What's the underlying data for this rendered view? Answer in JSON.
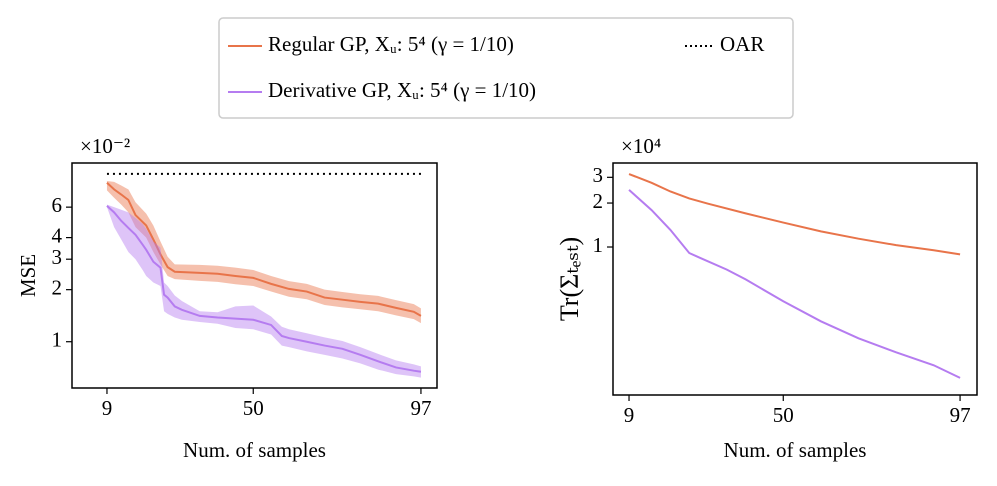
{
  "chart_data": [
    {
      "type": "line",
      "ylabel": "MSE",
      "xlabel": "Num. of samples",
      "y_multiplier": "×10⁻²",
      "yscale": "log",
      "xlim": [
        -0.8,
        101.5
      ],
      "ylim": [
        0.54,
        10.8
      ],
      "xticks": [
        9,
        50,
        97
      ],
      "yticks": [
        1,
        2,
        3,
        4,
        6
      ],
      "series": [
        {
          "name": "Regular GP, Xᵤ: 5⁴ (γ = 1/10)",
          "color": "#e8744a",
          "x": [
            9,
            11,
            13,
            15,
            17,
            20,
            22,
            24,
            26,
            28,
            35,
            40,
            45,
            50,
            55,
            60,
            65,
            70,
            75,
            80,
            85,
            90,
            95,
            97
          ],
          "values": [
            8.3,
            7.6,
            7.1,
            6.6,
            5.4,
            4.7,
            3.9,
            3.2,
            2.7,
            2.54,
            2.5,
            2.47,
            2.4,
            2.34,
            2.16,
            2.02,
            1.95,
            1.8,
            1.75,
            1.7,
            1.66,
            1.57,
            1.49,
            1.41
          ],
          "lower": [
            7.5,
            6.8,
            6.2,
            5.6,
            4.6,
            4.0,
            3.3,
            2.8,
            2.4,
            2.3,
            2.25,
            2.22,
            2.15,
            2.1,
            1.95,
            1.82,
            1.76,
            1.63,
            1.58,
            1.54,
            1.5,
            1.42,
            1.35,
            1.28
          ],
          "upper": [
            8.5,
            8.4,
            8.0,
            7.6,
            6.4,
            5.5,
            4.7,
            3.8,
            3.1,
            2.8,
            2.78,
            2.75,
            2.68,
            2.6,
            2.4,
            2.24,
            2.16,
            2.0,
            1.94,
            1.88,
            1.84,
            1.74,
            1.65,
            1.56
          ]
        },
        {
          "name": "Derivative GP, Xᵤ: 5⁴ (γ = 1/10)",
          "color": "#b57cf0",
          "x": [
            9,
            11,
            13,
            15,
            17,
            19,
            20,
            22,
            24,
            25,
            26,
            28,
            30,
            35,
            40,
            45,
            50,
            55,
            58,
            60,
            65,
            70,
            75,
            80,
            85,
            90,
            95,
            97
          ],
          "values": [
            6.1,
            5.6,
            5.0,
            4.55,
            4.15,
            3.64,
            3.4,
            2.9,
            2.68,
            1.87,
            1.8,
            1.6,
            1.53,
            1.41,
            1.38,
            1.36,
            1.34,
            1.25,
            1.08,
            1.05,
            1.0,
            0.95,
            0.91,
            0.84,
            0.77,
            0.71,
            0.68,
            0.67
          ],
          "lower": [
            6.0,
            4.6,
            3.9,
            3.3,
            3.0,
            2.6,
            2.4,
            2.2,
            2.1,
            1.5,
            1.45,
            1.38,
            1.34,
            1.3,
            1.27,
            1.2,
            1.18,
            1.1,
            0.95,
            0.93,
            0.88,
            0.84,
            0.8,
            0.75,
            0.69,
            0.65,
            0.63,
            0.62
          ],
          "upper": [
            6.2,
            6.0,
            5.8,
            5.6,
            5.2,
            4.8,
            4.5,
            3.8,
            3.5,
            2.2,
            2.1,
            1.85,
            1.72,
            1.5,
            1.48,
            1.6,
            1.62,
            1.4,
            1.22,
            1.18,
            1.12,
            1.06,
            1.01,
            0.93,
            0.85,
            0.78,
            0.74,
            0.72
          ]
        },
        {
          "name": "OAR",
          "color": "#000000",
          "dash": true,
          "x": [
            9,
            97
          ],
          "values": [
            9.35,
            9.35
          ]
        }
      ]
    },
    {
      "type": "line",
      "ylabel": "Tr(Σₜₑₛₜ)",
      "xlabel": "Num. of samples",
      "y_multiplier": "×10⁴",
      "yscale": "log",
      "xlim": [
        4.74,
        101.5
      ],
      "ylim": [
        0.097,
        3.76
      ],
      "xticks": [
        9,
        50,
        97
      ],
      "yticks": [
        1,
        2,
        3
      ],
      "series": [
        {
          "color": "#e8744a",
          "x": [
            9,
            15,
            20,
            25,
            30,
            40,
            50,
            60,
            70,
            80,
            90,
            97
          ],
          "values": [
            3.16,
            2.75,
            2.4,
            2.15,
            1.98,
            1.7,
            1.47,
            1.28,
            1.14,
            1.03,
            0.95,
            0.89
          ]
        },
        {
          "color": "#b57cf0",
          "x": [
            9,
            15,
            20,
            25,
            28,
            35,
            40,
            50,
            60,
            70,
            80,
            90,
            97
          ],
          "values": [
            2.46,
            1.79,
            1.31,
            0.91,
            0.84,
            0.7,
            0.6,
            0.425,
            0.31,
            0.237,
            0.19,
            0.155,
            0.127
          ]
        }
      ]
    }
  ]
}
